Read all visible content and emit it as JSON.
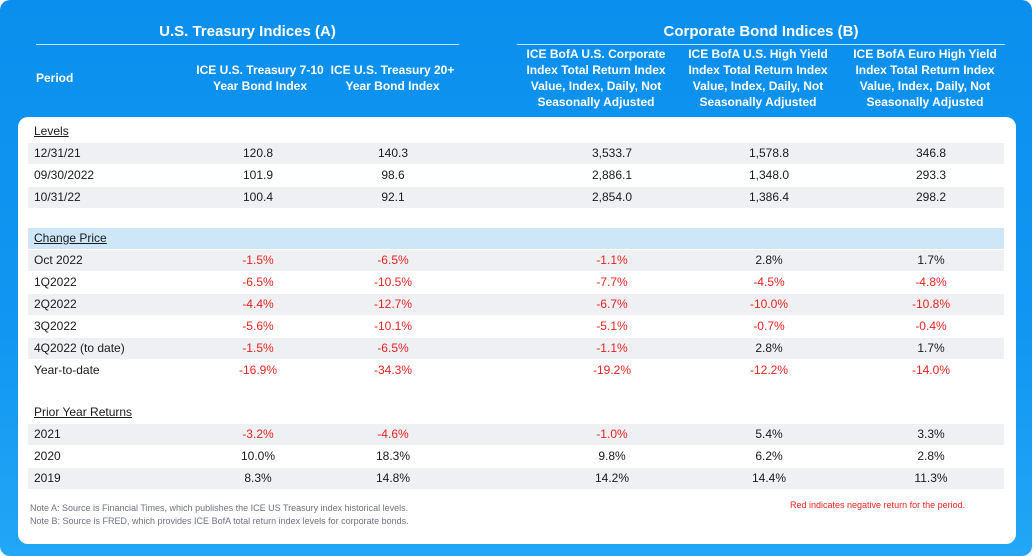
{
  "header": {
    "group_a": "U.S. Treasury Indices (A)",
    "group_b": "Corporate Bond Indices (B)",
    "period": "Period",
    "col_a1": "ICE U.S. Treasury 7-10 Year Bond Index",
    "col_a2": "ICE U.S. Treasury 20+ Year Bond Index",
    "col_b1": "ICE BofA U.S. Corporate Index Total Return Index Value, Index, Daily, Not Seasonally Adjusted",
    "col_b2": "ICE BofA U.S. High Yield Index Total Return Index Value, Index, Daily, Not Seasonally Adjusted",
    "col_b3": "ICE BofA Euro High Yield Index Total Return Index Value, Index, Daily, Not Seasonally Adjusted"
  },
  "chart_data": {
    "type": "table",
    "sections": [
      {
        "title": "Levels",
        "rows": [
          {
            "label": "12/31/21",
            "values": [
              "120.8",
              "140.3",
              "3,533.7",
              "1,578.8",
              "346.8"
            ]
          },
          {
            "label": "09/30/2022",
            "values": [
              "101.9",
              "98.6",
              "2,886.1",
              "1,348.0",
              "293.3"
            ]
          },
          {
            "label": "10/31/22",
            "values": [
              "100.4",
              "92.1",
              "2,854.0",
              "1,386.4",
              "298.2"
            ]
          }
        ]
      },
      {
        "title": "Change Price",
        "rows": [
          {
            "label": "Oct 2022",
            "values": [
              "-1.5%",
              "-6.5%",
              "-1.1%",
              "2.8%",
              "1.7%"
            ]
          },
          {
            "label": "1Q2022",
            "values": [
              "-6.5%",
              "-10.5%",
              "-7.7%",
              "-4.5%",
              "-4.8%"
            ]
          },
          {
            "label": "2Q2022",
            "values": [
              "-4.4%",
              "-12.7%",
              "-6.7%",
              "-10.0%",
              "-10.8%"
            ]
          },
          {
            "label": "3Q2022",
            "values": [
              "-5.6%",
              "-10.1%",
              "-5.1%",
              "-0.7%",
              "-0.4%"
            ]
          },
          {
            "label": "4Q2022 (to date)",
            "values": [
              "-1.5%",
              "-6.5%",
              "-1.1%",
              "2.8%",
              "1.7%"
            ]
          },
          {
            "label": "Year-to-date",
            "values": [
              "-16.9%",
              "-34.3%",
              "-19.2%",
              "-12.2%",
              "-14.0%"
            ]
          }
        ]
      },
      {
        "title": "Prior Year Returns",
        "rows": [
          {
            "label": "2021",
            "values": [
              "-3.2%",
              "-4.6%",
              "-1.0%",
              "5.4%",
              "3.3%"
            ]
          },
          {
            "label": "2020",
            "values": [
              "10.0%",
              "18.3%",
              "9.8%",
              "6.2%",
              "2.8%"
            ]
          },
          {
            "label": "2019",
            "values": [
              "8.3%",
              "14.8%",
              "14.2%",
              "14.4%",
              "11.3%"
            ]
          }
        ]
      }
    ],
    "negative_color": "#e8231f",
    "header_color": "#0b8fee"
  },
  "notes": {
    "note_a": "Note A:  Source is Financial Times, which publishes the ICE US Treasury index historical levels.",
    "note_b": "Note B: Source is FRED, which provides ICE BofA total return index levels for corporate bonds.",
    "legend": "Red indicates negative return for the period."
  }
}
